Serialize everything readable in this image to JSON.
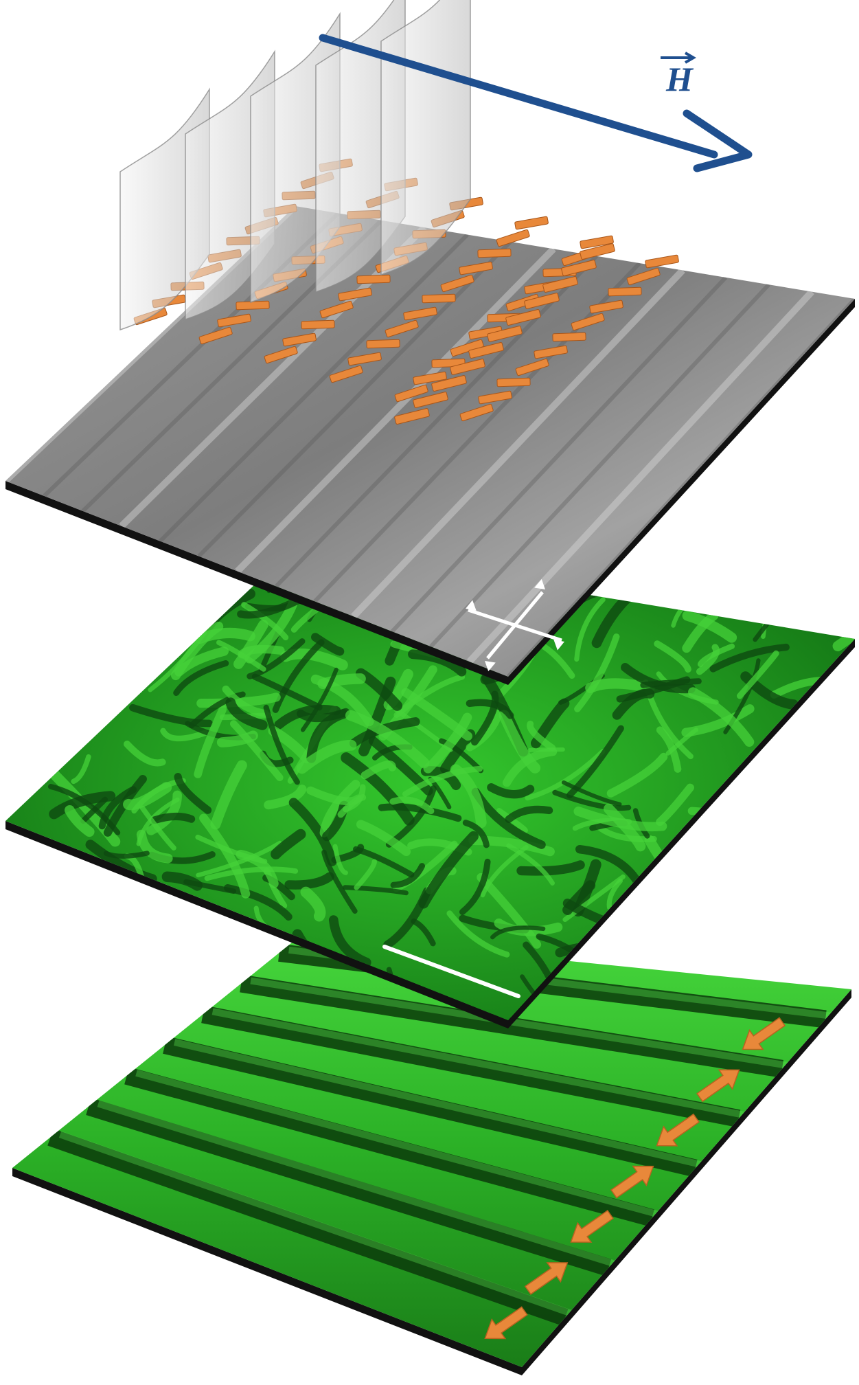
{
  "field_label": "H",
  "colors": {
    "background": "#ffffff",
    "field_arrow": "#1f4f8f",
    "director_orange": "#e8883a",
    "polarized_gray": "#8c8c8c",
    "fluorescence_green": "#2fb82a",
    "dark_green": "#0e4a10",
    "bright_green": "#45d13a",
    "slab_edge": "#111111",
    "polarizer_arrows": "#ffffff",
    "scale_bar": "#ffffff"
  },
  "icons": {
    "field_arrow": "long-arrow-right-icon",
    "polarizers": "crossed-double-arrow-icon",
    "director_arrows": "block-arrow-icon"
  },
  "bottom_layer": {
    "arrow_directions": [
      "down",
      "up",
      "down",
      "up",
      "down",
      "up",
      "down"
    ]
  }
}
